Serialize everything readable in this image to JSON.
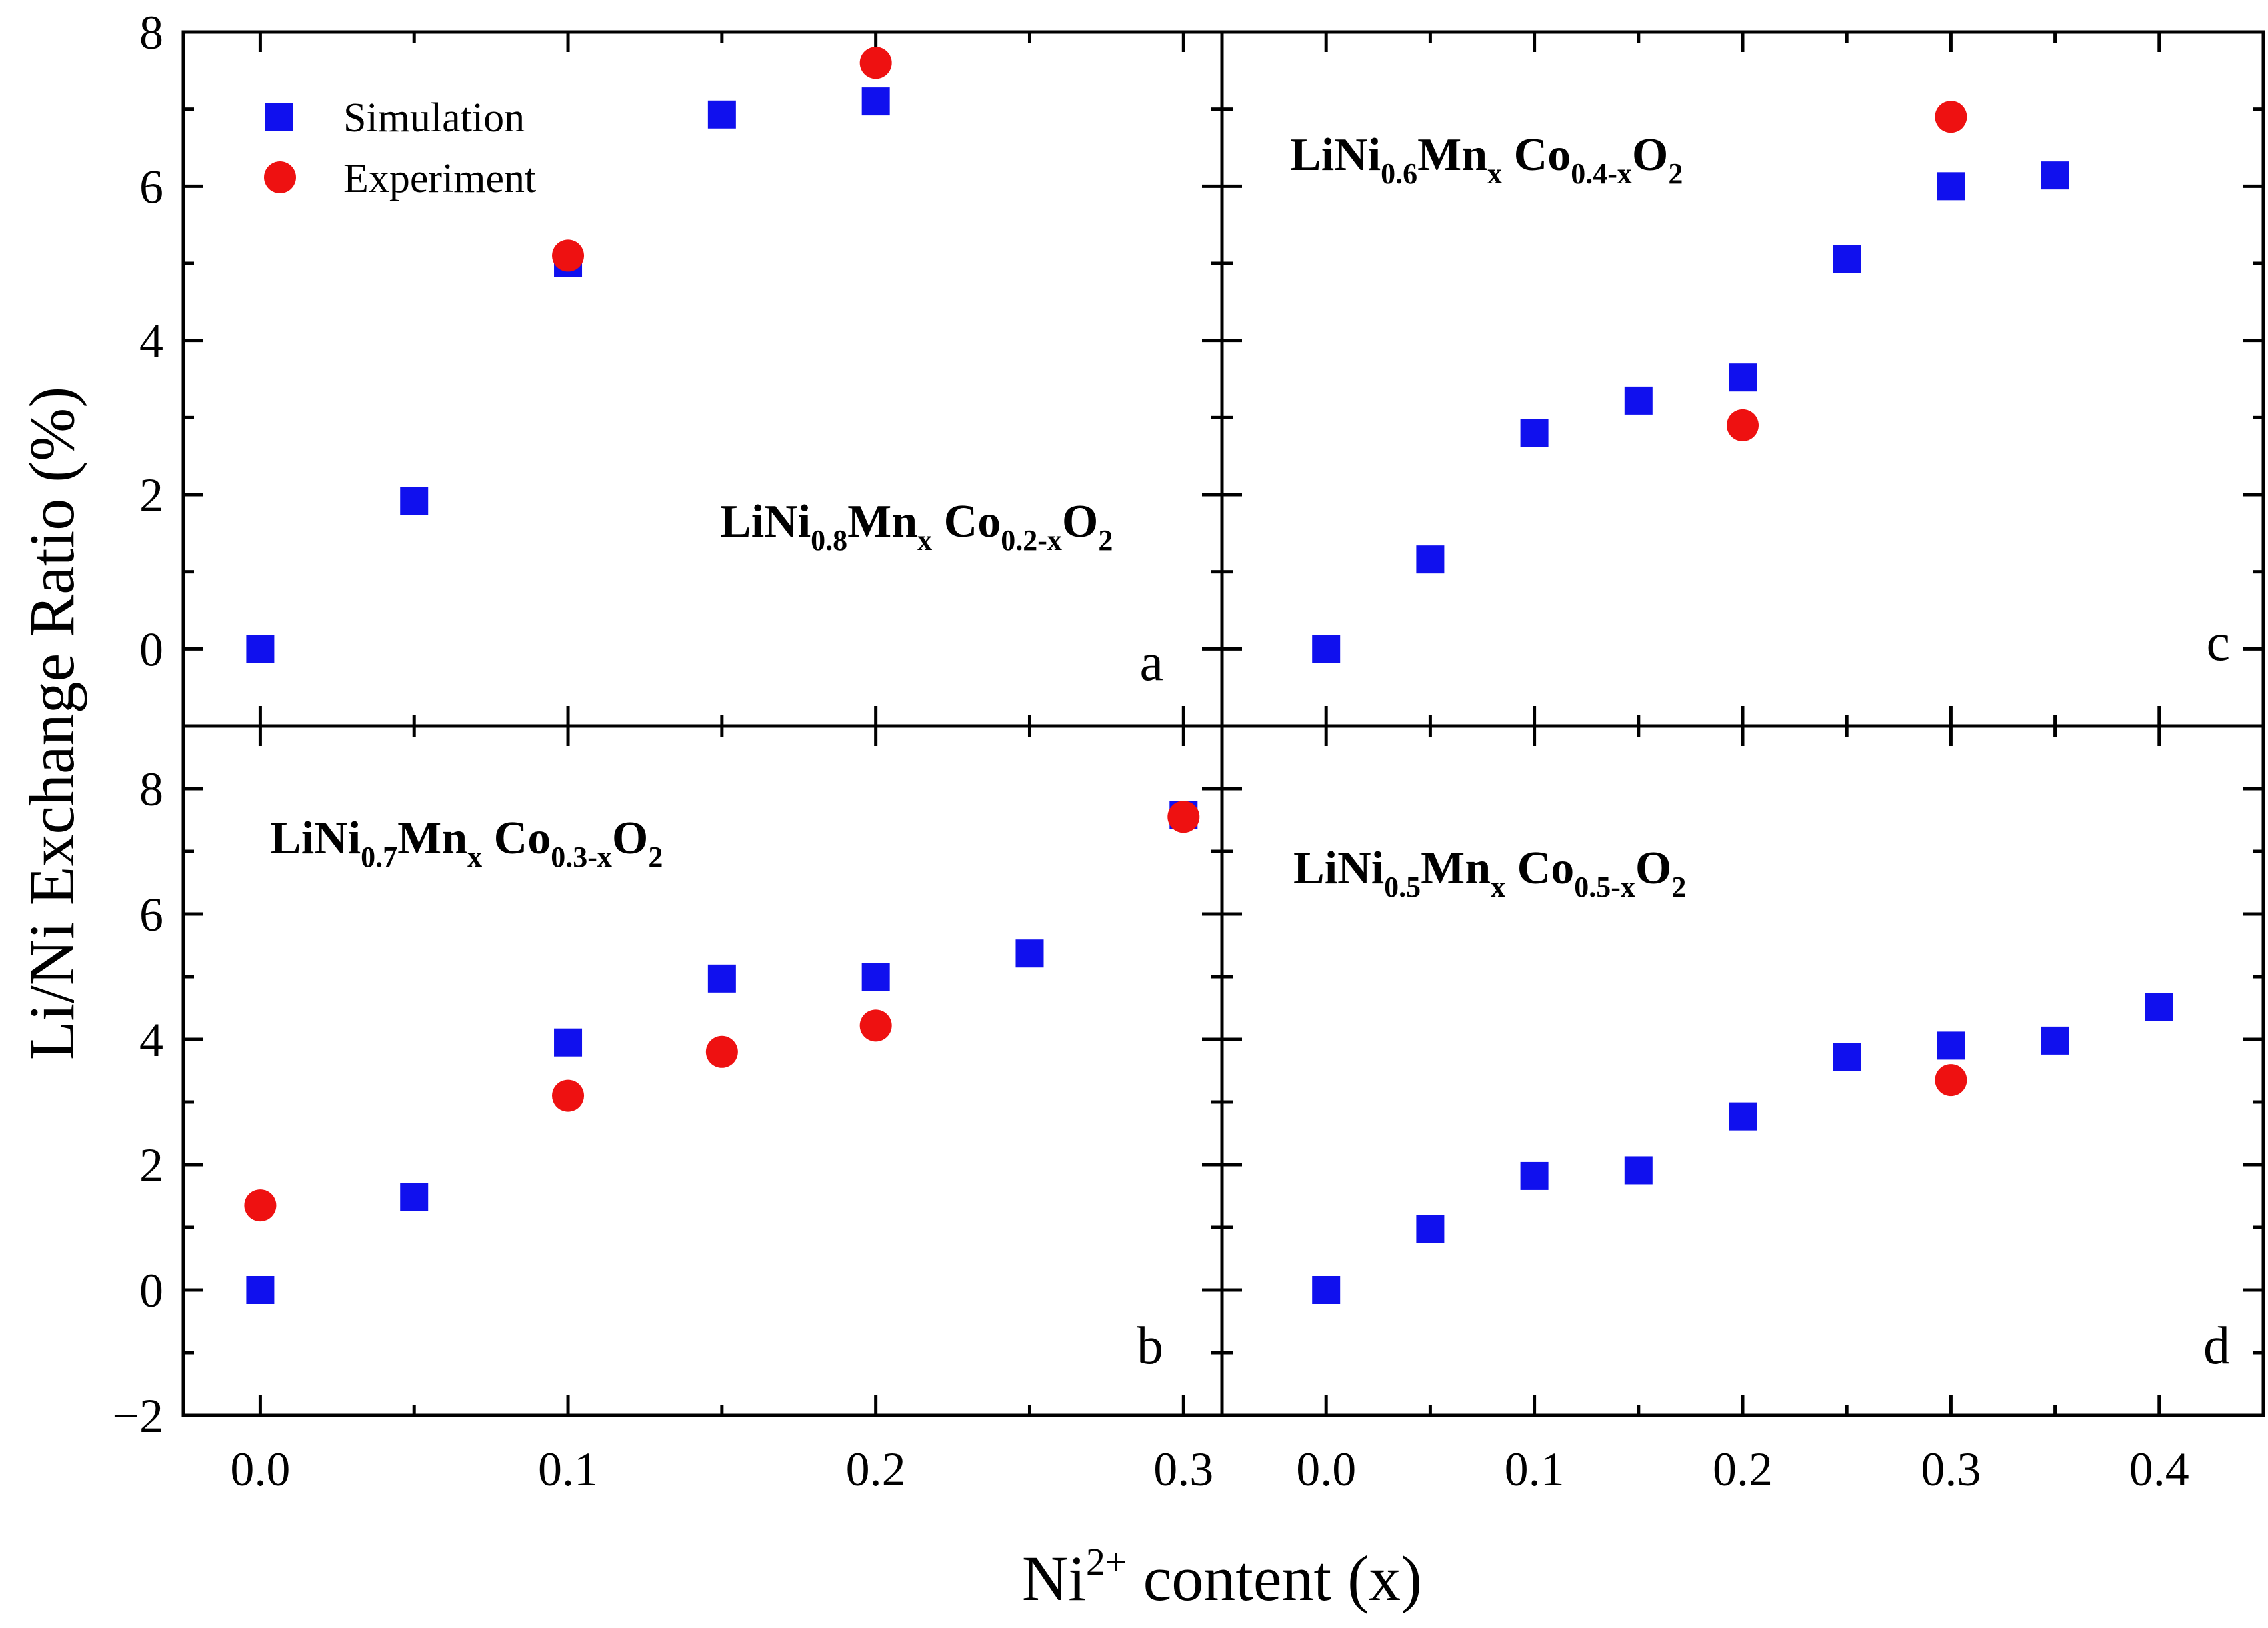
{
  "chart_data": {
    "type": "scatter",
    "shared_ylabel": "Li/Ni Exchange Ratio (%)",
    "shared_xlabel": {
      "base": "Ni",
      "superscript": "2+",
      "rest": " content (x)"
    },
    "legend": {
      "placement": "top-left of panel a",
      "entries": [
        {
          "name": "Simulation",
          "marker": "square",
          "color": "#1010ee"
        },
        {
          "name": "Experiment",
          "marker": "circle",
          "color": "#ee1111"
        }
      ]
    },
    "colors": {
      "simulation": "#1010ee",
      "experiment": "#ee1111",
      "axis": "#000000"
    },
    "panels": [
      {
        "id": "a",
        "label": "a",
        "formula": {
          "p1": "LiNi",
          "s1": "0.8",
          "p2": "Mn",
          "s2": "x",
          "p3": " Co",
          "s3": "0.2-x",
          "p4": "O",
          "s4": "2"
        },
        "xlim": [
          -0.025,
          0.3125
        ],
        "ylim": [
          -1,
          8
        ],
        "yticks": [
          0,
          2,
          4,
          6,
          8
        ],
        "ytick_labels": [
          "0",
          "2",
          "4",
          "6",
          "8"
        ],
        "series": [
          {
            "name": "Simulation",
            "x": [
              0.0,
              0.05,
              0.1,
              0.15,
              0.2
            ],
            "y": [
              0.0,
              1.92,
              5.0,
              6.93,
              7.1
            ]
          },
          {
            "name": "Experiment",
            "x": [
              0.1,
              0.2
            ],
            "y": [
              5.1,
              7.6
            ]
          }
        ]
      },
      {
        "id": "c",
        "label": "c",
        "formula": {
          "p1": "LiNi",
          "s1": "0.6",
          "p2": "Mn",
          "s2": "x",
          "p3": " Co",
          "s3": "0.4-x",
          "p4": "O",
          "s4": "2"
        },
        "xlim": [
          -0.05,
          0.45
        ],
        "ylim": [
          -1,
          8
        ],
        "series": [
          {
            "name": "Simulation",
            "x": [
              0.0,
              0.05,
              0.1,
              0.15,
              0.2,
              0.25,
              0.3,
              0.35
            ],
            "y": [
              0.0,
              1.16,
              2.8,
              3.22,
              3.52,
              5.06,
              6.0,
              6.14
            ]
          },
          {
            "name": "Experiment",
            "x": [
              0.2,
              0.3
            ],
            "y": [
              2.9,
              6.9
            ]
          }
        ]
      },
      {
        "id": "b",
        "label": "b",
        "formula": {
          "p1": "LiNi",
          "s1": "0.7",
          "p2": "Mn",
          "s2": "x",
          "p3": " Co",
          "s3": "0.3-x",
          "p4": "O",
          "s4": "2"
        },
        "xlim": [
          -0.025,
          0.3125
        ],
        "ylim": [
          -2,
          9
        ],
        "yticks": [
          -2,
          0,
          2,
          4,
          6,
          8
        ],
        "ytick_labels": [
          "−2",
          "0",
          "2",
          "4",
          "6",
          "8"
        ],
        "xticks": [
          0.0,
          0.1,
          0.2,
          0.3
        ],
        "xtick_labels": [
          "0.0",
          "0.1",
          "0.2",
          "0.3"
        ],
        "series": [
          {
            "name": "Simulation",
            "x": [
              0.0,
              0.05,
              0.1,
              0.15,
              0.2,
              0.25,
              0.3
            ],
            "y": [
              0.0,
              1.48,
              3.95,
              4.97,
              5.0,
              5.37,
              7.58
            ]
          },
          {
            "name": "Experiment",
            "x": [
              0.0,
              0.1,
              0.15,
              0.2,
              0.3
            ],
            "y": [
              1.35,
              3.1,
              3.8,
              4.22,
              7.55
            ]
          }
        ]
      },
      {
        "id": "d",
        "label": "d",
        "formula": {
          "p1": "LiNi",
          "s1": "0.5",
          "p2": "Mn",
          "s2": "x",
          "p3": " Co",
          "s3": "0.5-x",
          "p4": "O",
          "s4": "2"
        },
        "xlim": [
          -0.05,
          0.45
        ],
        "ylim": [
          -2,
          9
        ],
        "xticks": [
          0.0,
          0.1,
          0.2,
          0.3,
          0.4
        ],
        "xtick_labels": [
          "0.0",
          "0.1",
          "0.2",
          "0.3",
          "0.4"
        ],
        "series": [
          {
            "name": "Simulation",
            "x": [
              0.0,
              0.05,
              0.1,
              0.15,
              0.2,
              0.25,
              0.3,
              0.35,
              0.4
            ],
            "y": [
              0.0,
              0.97,
              1.82,
              1.91,
              2.77,
              3.72,
              3.9,
              3.98,
              4.52
            ]
          },
          {
            "name": "Experiment",
            "x": [
              0.3
            ],
            "y": [
              3.35
            ]
          }
        ]
      }
    ]
  }
}
